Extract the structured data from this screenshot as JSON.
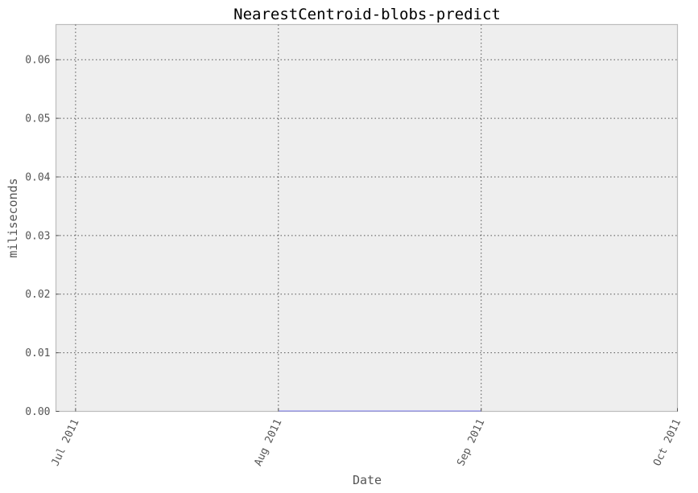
{
  "chart_data": {
    "type": "line",
    "title": "NearestCentroid-blobs-predict",
    "xlabel": "Date",
    "ylabel": "miliseconds",
    "x_ticks": [
      "Jul 2011",
      "Aug 2011",
      "Sep 2011",
      "Oct 2011"
    ],
    "y_ticks": [
      "0.00",
      "0.01",
      "0.02",
      "0.03",
      "0.04",
      "0.05",
      "0.06"
    ],
    "xlim": [
      "2011-06-28",
      "2011-10-01"
    ],
    "ylim": [
      0,
      0.066
    ],
    "grid": true,
    "series": [
      {
        "color": "#7b7bf0",
        "points": [
          {
            "x": "2011-08-01",
            "y": 0.0
          },
          {
            "x": "2011-09-01",
            "y": 0.0
          }
        ]
      }
    ]
  }
}
